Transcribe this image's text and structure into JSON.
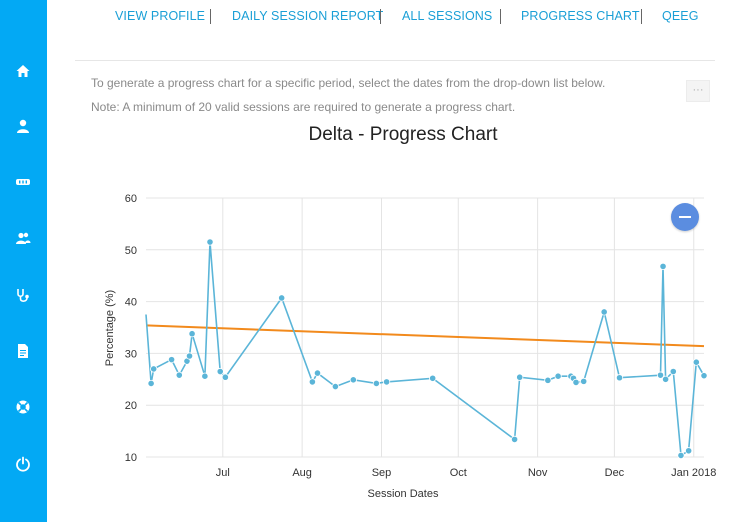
{
  "sidebar": {
    "icons": [
      "home-icon",
      "user-icon",
      "equipment-icon",
      "users-icon",
      "stethoscope-icon",
      "document-icon",
      "support-icon",
      "power-icon"
    ]
  },
  "nav": {
    "items": [
      "VIEW PROFILE",
      "DAILY SESSION REPORT",
      "ALL SESSIONS",
      "PROGRESS CHART",
      "QEEG"
    ]
  },
  "notes": {
    "line1": "To generate a progress chart for a specific period, select the dates from the drop-down list below.",
    "line2": "Note: A minimum of 20 valid sessions are required to generate a progress chart."
  },
  "menu_button": {
    "label": "···"
  },
  "colors": {
    "sidebar": "#03a9f4",
    "nav_text": "#1a9fd6",
    "series": "#5bb5d8",
    "trend": "#f28a1c",
    "zoom": "#5b8de0"
  },
  "chart_data": {
    "type": "line",
    "title": "Delta - Progress Chart",
    "xlabel": "Session Dates",
    "ylabel": "Percentage (%)",
    "ylim": [
      10,
      60
    ],
    "yticks": [
      10,
      20,
      30,
      40,
      50,
      60
    ],
    "xlim": [
      "2017-06-01",
      "2018-01-05"
    ],
    "xticks": [
      {
        "date": "2017-07-01",
        "label": "Jul"
      },
      {
        "date": "2017-08-01",
        "label": "Aug"
      },
      {
        "date": "2017-09-01",
        "label": "Sep"
      },
      {
        "date": "2017-10-01",
        "label": "Oct"
      },
      {
        "date": "2017-11-01",
        "label": "Nov"
      },
      {
        "date": "2017-12-01",
        "label": "Dec"
      },
      {
        "date": "2018-01-01",
        "label": "Jan 2018"
      }
    ],
    "grid": true,
    "series": [
      {
        "values": [
          {
            "x": "2017-06-01",
            "y": 37.5
          },
          {
            "x": "2017-06-03",
            "y": 24.2
          },
          {
            "x": "2017-06-04",
            "y": 27.0
          },
          {
            "x": "2017-06-11",
            "y": 28.8
          },
          {
            "x": "2017-06-14",
            "y": 25.8
          },
          {
            "x": "2017-06-17",
            "y": 28.5
          },
          {
            "x": "2017-06-18",
            "y": 29.5
          },
          {
            "x": "2017-06-19",
            "y": 33.8
          },
          {
            "x": "2017-06-24",
            "y": 25.6
          },
          {
            "x": "2017-06-26",
            "y": 51.5
          },
          {
            "x": "2017-06-30",
            "y": 26.5
          },
          {
            "x": "2017-07-02",
            "y": 25.4
          },
          {
            "x": "2017-07-24",
            "y": 40.7
          },
          {
            "x": "2017-08-05",
            "y": 24.5
          },
          {
            "x": "2017-08-07",
            "y": 26.2
          },
          {
            "x": "2017-08-14",
            "y": 23.6
          },
          {
            "x": "2017-08-21",
            "y": 24.9
          },
          {
            "x": "2017-08-30",
            "y": 24.2
          },
          {
            "x": "2017-09-03",
            "y": 24.5
          },
          {
            "x": "2017-09-21",
            "y": 25.2
          },
          {
            "x": "2017-10-23",
            "y": 13.4
          },
          {
            "x": "2017-10-25",
            "y": 25.4
          },
          {
            "x": "2017-11-05",
            "y": 24.8
          },
          {
            "x": "2017-11-09",
            "y": 25.6
          },
          {
            "x": "2017-11-14",
            "y": 25.6
          },
          {
            "x": "2017-11-15",
            "y": 25.2
          },
          {
            "x": "2017-11-16",
            "y": 24.4
          },
          {
            "x": "2017-11-19",
            "y": 24.6
          },
          {
            "x": "2017-11-27",
            "y": 38.0
          },
          {
            "x": "2017-12-03",
            "y": 25.3
          },
          {
            "x": "2017-12-19",
            "y": 25.8
          },
          {
            "x": "2017-12-20",
            "y": 46.8
          },
          {
            "x": "2017-12-21",
            "y": 25.0
          },
          {
            "x": "2017-12-24",
            "y": 26.5
          },
          {
            "x": "2017-12-27",
            "y": 10.3
          },
          {
            "x": "2017-12-30",
            "y": 11.2
          },
          {
            "x": "2018-01-02",
            "y": 28.3
          },
          {
            "x": "2018-01-05",
            "y": 25.7
          }
        ]
      },
      {
        "type": "trend",
        "values": [
          {
            "x": "2017-06-01",
            "y": 35.4
          },
          {
            "x": "2018-01-05",
            "y": 31.4
          }
        ]
      }
    ]
  }
}
